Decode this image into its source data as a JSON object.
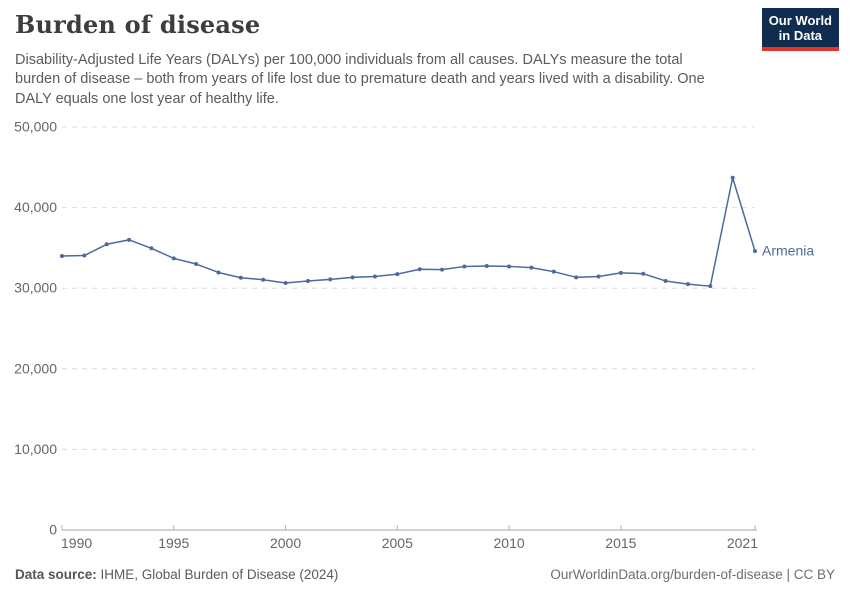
{
  "header": {
    "title": "Burden of disease",
    "subtitle": "Disability-Adjusted Life Years (DALYs) per 100,000 individuals from all causes. DALYs measure the total burden of disease – both from years of life lost due to premature death and years lived with a disability. One DALY equals one lost year of healthy life.",
    "logo": {
      "line1": "Our World",
      "line2": "in Data",
      "bg_color": "#102d50",
      "accent_color": "#e0342c"
    }
  },
  "chart_data": {
    "type": "line",
    "title": "Burden of disease",
    "x": [
      1990,
      1991,
      1992,
      1993,
      1994,
      1995,
      1996,
      1997,
      1998,
      1999,
      2000,
      2001,
      2002,
      2003,
      2004,
      2005,
      2006,
      2007,
      2008,
      2009,
      2010,
      2011,
      2012,
      2013,
      2014,
      2015,
      2016,
      2017,
      2018,
      2019,
      2020,
      2021
    ],
    "series": [
      {
        "name": "Armenia",
        "color": "#4c6a9c",
        "values": [
          34000,
          34050,
          35450,
          36000,
          34950,
          33700,
          33000,
          31950,
          31300,
          31050,
          30650,
          30900,
          31100,
          31350,
          31450,
          31750,
          32350,
          32300,
          32700,
          32750,
          32700,
          32550,
          32050,
          31350,
          31450,
          31900,
          31800,
          30900,
          30500,
          30250,
          43700,
          34600
        ]
      }
    ],
    "xlabel": "",
    "ylabel": "",
    "ylim": [
      0,
      50000
    ],
    "xlim": [
      1990,
      2021
    ],
    "yticks": [
      0,
      10000,
      20000,
      30000,
      40000,
      50000
    ],
    "ytick_labels": [
      "0",
      "10,000",
      "20,000",
      "30,000",
      "40,000",
      "50,000"
    ],
    "xticks": [
      1990,
      1995,
      2000,
      2005,
      2010,
      2015,
      2021
    ],
    "xtick_labels": [
      "1990",
      "1995",
      "2000",
      "2005",
      "2010",
      "2015",
      "2021"
    ],
    "grid": "horizontal-dashed",
    "legend": "end-of-line label",
    "grid_color": "#dcdcdc",
    "axis_color": "#a3a3a3",
    "tick_color": "#b5b5b5"
  },
  "footer": {
    "source_label": "Data source:",
    "source_text": " IHME, Global Burden of Disease (2024)",
    "attribution": "OurWorldinData.org/burden-of-disease | CC BY"
  }
}
